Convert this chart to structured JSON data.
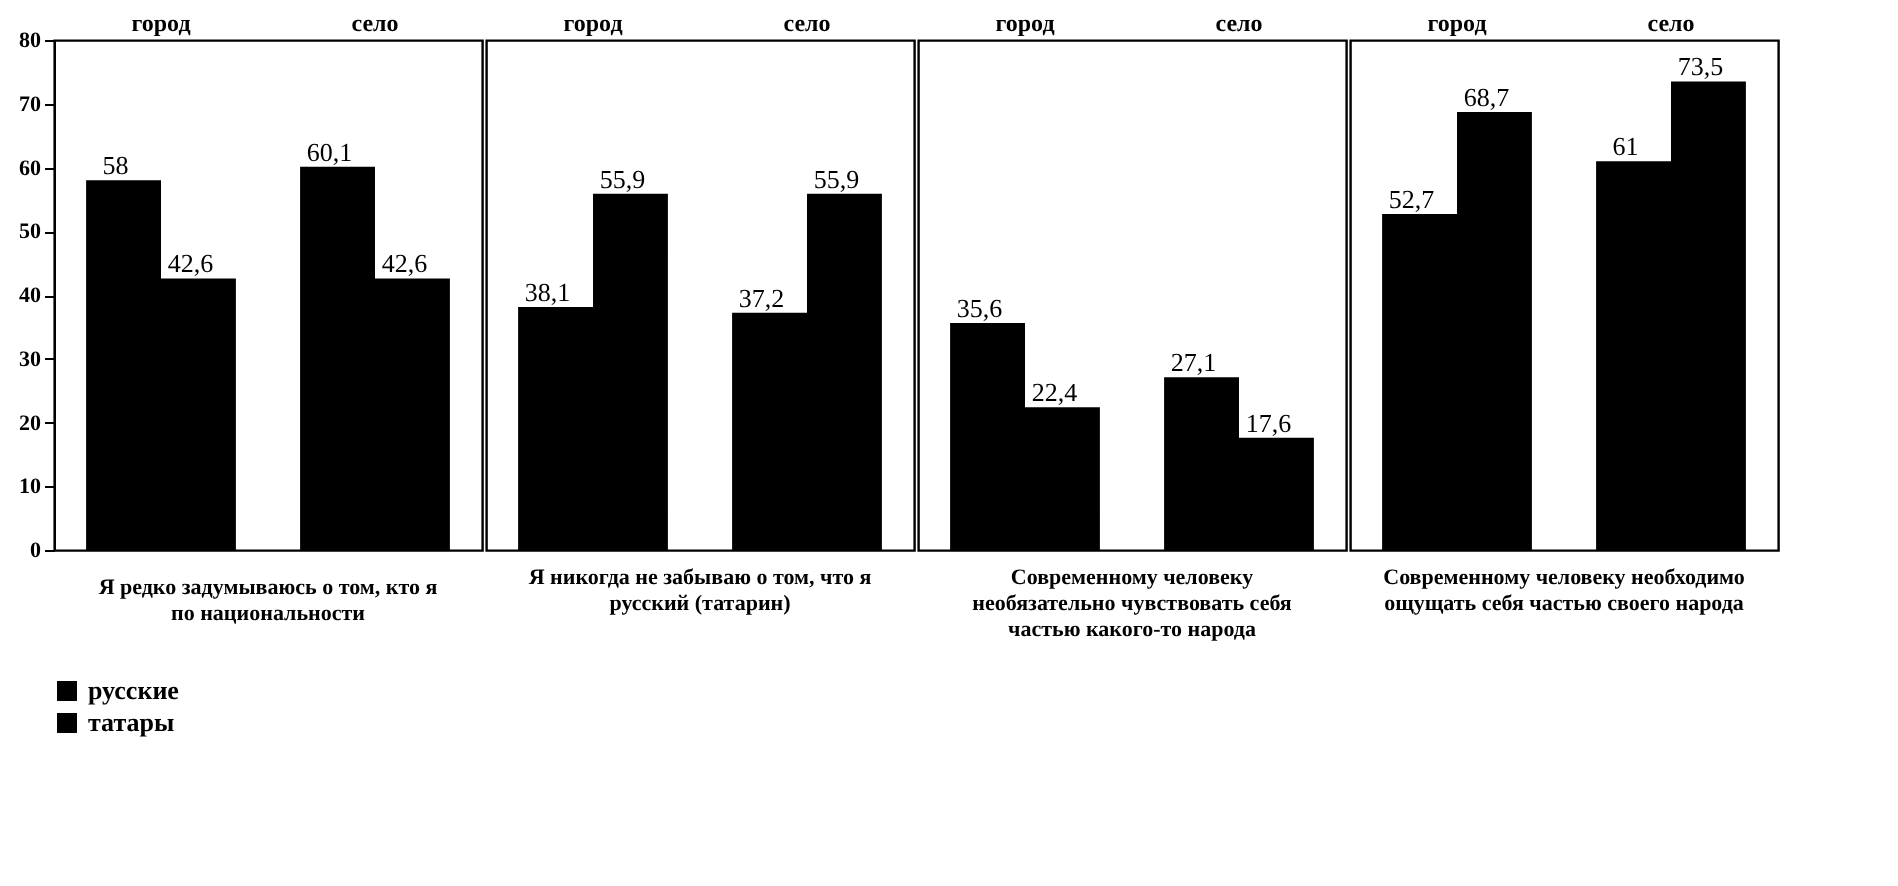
{
  "chart_data": [
    {
      "type": "bar",
      "categories": [
        "город",
        "село"
      ],
      "xlabel": "Я редко задумываюсь о том, кто я по национальности",
      "ylim": [
        0,
        80
      ],
      "yticks": [
        0,
        10,
        20,
        30,
        40,
        50,
        60,
        70,
        80
      ],
      "legend": "bottom",
      "grid": false,
      "series": [
        {
          "name": "русские",
          "color": "#000000",
          "values": [
            58,
            60.1
          ],
          "value_labels": [
            "58",
            "60,1"
          ]
        },
        {
          "name": "татары",
          "color": "#000000",
          "values": [
            42.6,
            42.6
          ],
          "value_labels": [
            "42,6",
            "42,6"
          ]
        }
      ]
    },
    {
      "type": "bar",
      "categories": [
        "город",
        "село"
      ],
      "xlabel": "Я никогда не забываю о том, что я русский (татарин)",
      "ylim": [
        0,
        80
      ],
      "tick_labels": "x",
      "legend": "bottom",
      "grid": false,
      "series": [
        {
          "name": "русские",
          "color": "#000000",
          "values": [
            38.1,
            37.2
          ],
          "value_labels": [
            "38,1",
            "37,2"
          ]
        },
        {
          "name": "татары",
          "color": "#000000",
          "values": [
            55.9,
            55.9
          ],
          "value_labels": [
            "55,9",
            "55,9"
          ]
        }
      ]
    },
    {
      "type": "bar",
      "categories": [
        "город",
        "село"
      ],
      "xlabel": "Современному человеку необязательно чувствовать себя частью какого-то народа",
      "ylim": [
        0,
        80
      ],
      "tick_labels": "x",
      "legend": "bottom",
      "grid": false,
      "series": [
        {
          "name": "русские",
          "color": "#000000",
          "values": [
            35.6,
            27.1
          ],
          "value_labels": [
            "35,6",
            "27,1"
          ]
        },
        {
          "name": "татары",
          "color": "#000000",
          "values": [
            22.4,
            17.6
          ],
          "value_labels": [
            "22,4",
            "17,6"
          ]
        }
      ]
    },
    {
      "type": "bar",
      "categories": [
        "город",
        "село"
      ],
      "xlabel": "Современному человеку необходимо ощущать себя частью своего народа",
      "ylim": [
        0,
        80
      ],
      "tick_labels": "x",
      "legend": "bottom",
      "grid": false,
      "series": [
        {
          "name": "русские",
          "color": "#000000",
          "values": [
            52.7,
            61
          ],
          "value_labels": [
            "52,7",
            "61"
          ]
        },
        {
          "name": "татары",
          "color": "#000000",
          "values": [
            68.7,
            73.5
          ],
          "value_labels": [
            "68,7",
            "73,5"
          ]
        }
      ]
    }
  ]
}
